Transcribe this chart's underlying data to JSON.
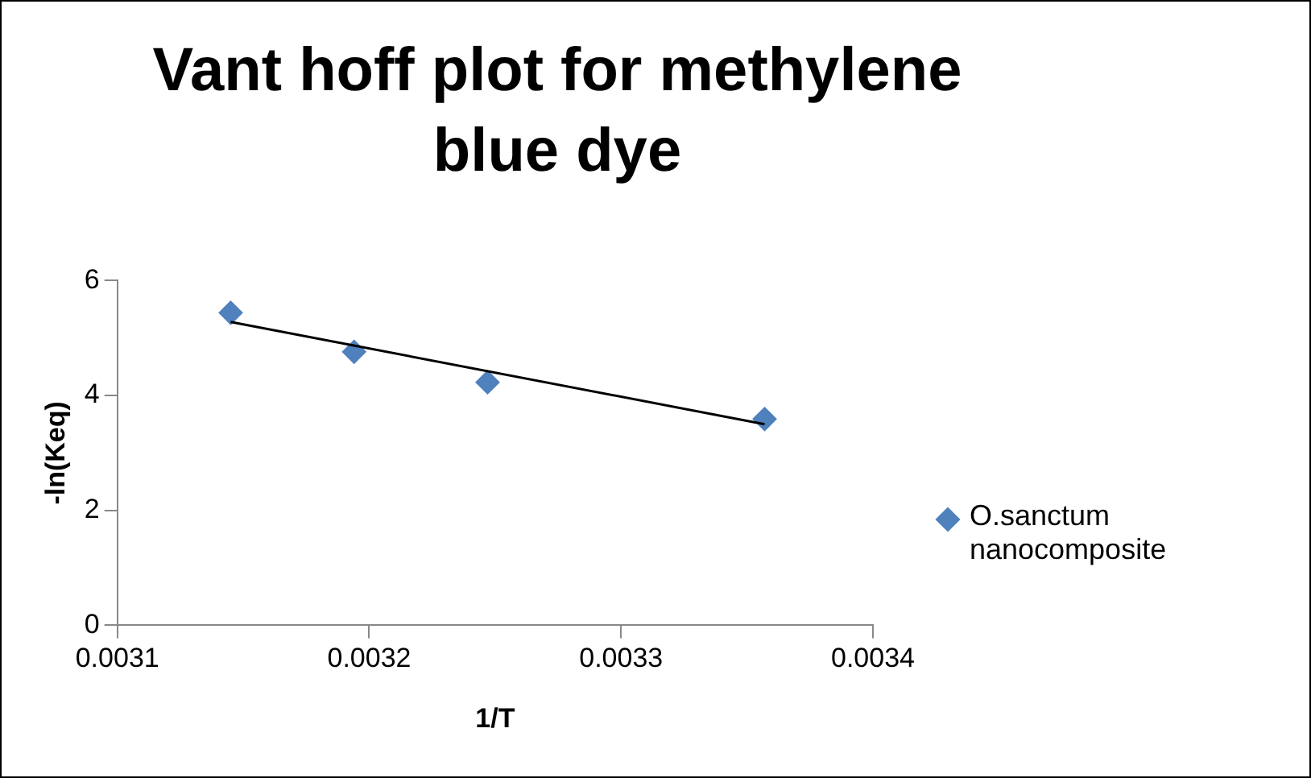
{
  "chart_data": {
    "type": "scatter",
    "title": "Vant hoff plot for methylene blue dye",
    "xlabel": "1/T",
    "ylabel": "-ln(Keq)",
    "xlim": [
      0.0031,
      0.0034
    ],
    "xticks": [
      0.0031,
      0.0032,
      0.0033,
      0.0034
    ],
    "ylim": [
      0,
      6
    ],
    "yticks": [
      0,
      2,
      4,
      6
    ],
    "grid": false,
    "legend": "right",
    "marker": "diamond",
    "series": [
      {
        "name": "O.sanctum nanocomposite",
        "color": "#4f81bd",
        "x": [
          0.003145,
          0.003194,
          0.003247,
          0.003357
        ],
        "values": [
          5.44,
          4.76,
          4.23,
          3.59
        ]
      },
      {
        "type": "line",
        "color": "#000000",
        "marker": "none",
        "x": [
          0.003145,
          0.003357
        ],
        "values": [
          5.28,
          3.5
        ]
      }
    ]
  }
}
